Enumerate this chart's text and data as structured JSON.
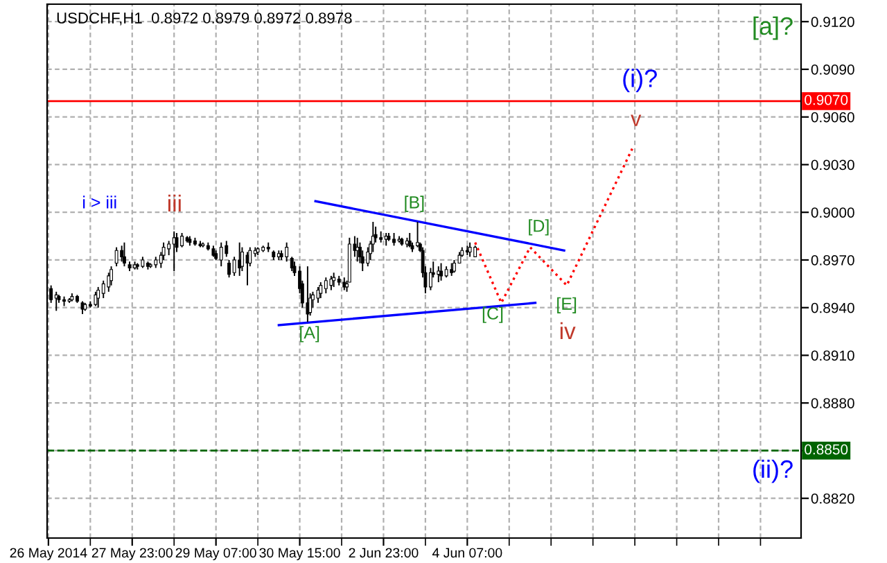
{
  "chart_data": {
    "type": "candlestick",
    "title": "USDCHF,H1  0.8972 0.8979 0.8972 0.8978",
    "categories": [
      "26 May 2014",
      null,
      null,
      null,
      null,
      null,
      null,
      null,
      null,
      null,
      null,
      null,
      null,
      null,
      null,
      null,
      null,
      null,
      null,
      null,
      null,
      null,
      null,
      null,
      null,
      null,
      null,
      null,
      null,
      null,
      null,
      null,
      "27 May 23:00",
      null,
      null,
      null,
      null,
      null,
      null,
      null,
      null,
      null,
      null,
      null,
      null,
      null,
      null,
      null,
      null,
      null,
      null,
      null,
      null,
      null,
      null,
      null,
      null,
      null,
      null,
      null,
      null,
      null,
      null,
      null,
      "29 May 07:00",
      null,
      null,
      null,
      null,
      null,
      null,
      null,
      null,
      null,
      null,
      null,
      null,
      null,
      null,
      null,
      null,
      null,
      null,
      null,
      null,
      null,
      null,
      null,
      null,
      null,
      null,
      null,
      null,
      null,
      null,
      null,
      "30 May 15:00",
      null,
      null,
      null,
      null,
      null,
      null,
      null,
      null,
      null,
      null,
      null,
      null,
      null,
      null,
      null,
      null,
      null,
      null,
      null,
      null,
      null,
      null,
      null,
      null,
      null,
      null,
      null,
      null,
      null,
      null,
      null,
      "2 Jun 23:00",
      null,
      null,
      null,
      null,
      null,
      null,
      null,
      null,
      null,
      null,
      null,
      null,
      null,
      null,
      null,
      null,
      null,
      null,
      null,
      null,
      null,
      null,
      null,
      null,
      null,
      null,
      null,
      null,
      null,
      null,
      null,
      "4 Jun 07:00",
      null,
      null,
      null,
      null,
      null,
      null,
      null,
      null,
      null,
      null,
      null,
      null,
      null,
      null,
      null,
      null,
      null,
      null,
      null,
      null,
      null,
      null,
      null,
      null,
      null,
      null,
      null,
      null,
      null,
      null,
      null,
      null,
      null,
      null,
      null,
      null,
      null,
      null,
      null,
      null,
      null,
      null,
      null,
      null,
      null,
      null,
      null,
      null,
      null,
      null,
      null,
      null,
      null,
      null,
      null,
      null,
      null,
      null,
      null,
      null,
      null,
      null,
      null,
      null,
      null,
      null,
      null,
      null,
      null,
      null,
      null,
      null,
      null,
      null,
      null,
      null,
      null,
      null,
      null,
      null,
      null,
      null,
      null,
      null,
      null,
      null,
      null,
      null,
      null,
      null,
      null,
      null,
      null,
      null,
      null,
      null,
      null,
      null,
      null,
      null,
      null,
      null,
      null,
      null,
      null,
      null,
      null,
      null,
      null,
      null,
      null,
      null,
      null,
      null,
      null,
      null,
      null,
      null,
      null,
      null,
      null,
      null,
      null,
      null,
      null,
      null,
      null
    ],
    "color": "#000000",
    "ohlc": [
      null,
      [
        0.8952,
        0.8954,
        0.8943,
        0.8945
      ],
      null,
      [
        0.8946,
        0.895,
        0.8938,
        0.8948
      ],
      [
        0.8947,
        0.8948,
        0.8943,
        0.8945
      ],
      null,
      [
        0.8945,
        0.8947,
        0.8941,
        0.8944
      ],
      null,
      [
        0.8944,
        0.8946,
        0.8943,
        0.8945
      ],
      [
        0.8945,
        0.8949,
        0.8944,
        0.8947
      ],
      null,
      [
        0.8947,
        0.8948,
        0.8943,
        0.8944
      ],
      null,
      [
        0.8943,
        0.8944,
        0.8936,
        0.8939
      ],
      [
        0.8939,
        0.8943,
        0.8938,
        0.8942
      ],
      null,
      [
        0.8942,
        0.8944,
        0.894,
        0.8941
      ],
      null,
      [
        0.8942,
        0.895,
        0.8941,
        0.8948
      ],
      [
        0.8946,
        0.8953,
        0.894,
        0.8951
      ],
      null,
      [
        0.8949,
        0.8957,
        0.8946,
        0.8955
      ],
      null,
      [
        0.8953,
        0.8962,
        0.895,
        0.896
      ],
      [
        0.8957,
        0.8966,
        0.8954,
        0.8964
      ],
      null,
      [
        0.8968,
        0.8978,
        0.8966,
        0.8976
      ],
      null,
      [
        0.8976,
        0.8979,
        0.8969,
        0.8972
      ],
      [
        0.8972,
        0.8981,
        0.8966,
        0.8968
      ],
      null,
      [
        0.8967,
        0.8969,
        0.8963,
        0.8965
      ],
      null,
      [
        0.8965,
        0.8969,
        0.8964,
        0.8967
      ],
      [
        0.8967,
        0.8968,
        0.8964,
        0.8966
      ],
      null,
      [
        0.8966,
        0.8972,
        0.8965,
        0.897
      ],
      null,
      [
        0.8968,
        0.8969,
        0.8964,
        0.8966
      ],
      [
        0.8966,
        0.8968,
        0.8965,
        0.8967
      ],
      null,
      [
        0.8967,
        0.8972,
        0.8965,
        0.897
      ],
      null,
      [
        0.8968,
        0.8975,
        0.8965,
        0.8973
      ],
      [
        0.8973,
        0.8981,
        0.897,
        0.8978
      ],
      null,
      [
        0.8977,
        0.8982,
        0.8973,
        0.898
      ],
      null,
      [
        0.898,
        0.8988,
        0.8963,
        0.8984
      ],
      [
        0.8984,
        0.8987,
        0.8975,
        0.8978
      ],
      null,
      [
        0.8979,
        0.8987,
        0.8978,
        0.8985
      ],
      null,
      [
        0.8984,
        0.8985,
        0.8981,
        0.8982
      ],
      [
        0.8983,
        0.8985,
        0.8979,
        0.8981
      ],
      null,
      [
        0.8982,
        0.8984,
        0.8979,
        0.898
      ],
      null,
      [
        0.898,
        0.8982,
        0.8978,
        0.8979
      ],
      [
        0.8979,
        0.8981,
        0.8978,
        0.898
      ],
      null,
      [
        0.8979,
        0.8981,
        0.8976,
        0.8977
      ],
      null,
      [
        0.8977,
        0.8979,
        0.8972,
        0.8973
      ],
      [
        0.8974,
        0.8976,
        0.897,
        0.8971
      ],
      null,
      [
        0.897,
        0.8981,
        0.8966,
        0.8978
      ],
      null,
      [
        0.8979,
        0.8982,
        0.8972,
        0.8974
      ],
      [
        0.8968,
        0.897,
        0.8959,
        0.8961
      ],
      null,
      [
        0.8962,
        0.8972,
        0.896,
        0.897
      ],
      null,
      [
        0.897,
        0.8981,
        0.896,
        0.8965
      ],
      [
        0.8966,
        0.8978,
        0.8963,
        0.8975
      ],
      null,
      [
        0.8973,
        0.8975,
        0.8954,
        0.8968
      ],
      [
        0.8968,
        0.8978,
        0.8966,
        0.8976
      ],
      null,
      [
        0.8974,
        0.8978,
        0.8972,
        0.8976
      ],
      [
        0.8975,
        0.8978,
        0.8973,
        0.8977
      ],
      null,
      [
        0.8976,
        0.8979,
        0.8975,
        0.8978
      ],
      null,
      [
        0.8978,
        0.8981,
        0.8975,
        0.8977
      ],
      null,
      [
        0.8975,
        0.8976,
        0.897,
        0.8972
      ],
      null,
      [
        0.8972,
        0.8976,
        0.897,
        0.8974
      ],
      [
        0.8974,
        0.8976,
        0.897,
        0.8972
      ],
      null,
      [
        0.8972,
        0.8981,
        0.8969,
        0.8978
      ],
      null,
      [
        0.8971,
        0.8972,
        0.8963,
        0.8965
      ],
      [
        0.8966,
        0.8969,
        0.896,
        0.8962
      ],
      null,
      [
        0.8963,
        0.8966,
        0.8949,
        0.8952
      ],
      [
        0.8955,
        0.8957,
        0.894,
        0.8943
      ],
      null,
      [
        0.8943,
        0.8966,
        0.8931,
        0.8936
      ],
      [
        0.8937,
        0.8949,
        0.8935,
        0.8946
      ],
      [
        0.8945,
        0.895,
        0.894,
        0.8948
      ],
      null,
      [
        0.8946,
        0.8953,
        0.8943,
        0.8951
      ],
      [
        0.8949,
        0.8956,
        0.8946,
        0.8954
      ],
      null,
      [
        0.8952,
        0.8959,
        0.8949,
        0.8957
      ],
      null,
      [
        0.8954,
        0.896,
        0.8951,
        0.8958
      ],
      [
        0.8957,
        0.8962,
        0.8953,
        0.8959
      ],
      null,
      [
        0.8958,
        0.896,
        0.8954,
        0.8956
      ],
      null,
      [
        0.8956,
        0.8959,
        0.8951,
        0.8953
      ],
      [
        0.8953,
        0.8957,
        0.895,
        0.8955
      ],
      [
        0.8956,
        0.8984,
        0.8956,
        0.898
      ],
      null,
      [
        0.898,
        0.8985,
        0.8972,
        0.8976
      ],
      [
        0.8976,
        0.8984,
        0.8969,
        0.8978
      ],
      [
        0.8978,
        0.8981,
        0.8968,
        0.8972
      ],
      [
        0.8972,
        0.8976,
        0.8963,
        0.8968
      ],
      null,
      [
        0.8968,
        0.8978,
        0.8966,
        0.8975
      ],
      [
        0.8974,
        0.8982,
        0.897,
        0.898
      ],
      [
        0.898,
        0.8994,
        0.8975,
        0.8985
      ],
      [
        0.8986,
        0.8991,
        0.8981,
        0.8984
      ],
      null,
      [
        0.8984,
        0.8988,
        0.8981,
        0.8983
      ],
      null,
      [
        0.8983,
        0.8987,
        0.8979,
        0.8985
      ],
      [
        0.8985,
        0.8987,
        0.8982,
        0.8983
      ],
      null,
      [
        0.8983,
        0.8987,
        0.8979,
        0.8981
      ],
      null,
      [
        0.8982,
        0.8985,
        0.8981,
        0.8983
      ],
      [
        0.8983,
        0.8984,
        0.8979,
        0.898
      ],
      null,
      [
        0.898,
        0.8984,
        0.8978,
        0.8982
      ],
      [
        0.8982,
        0.8987,
        0.8978,
        0.8979
      ],
      [
        0.8979,
        0.8981,
        0.8975,
        0.8977
      ],
      null,
      [
        0.8979,
        0.8994,
        0.8978,
        0.8981
      ],
      [
        0.898,
        0.8981,
        0.8975,
        0.8976
      ],
      [
        0.8976,
        0.8978,
        0.8959,
        0.8962
      ],
      [
        0.8962,
        0.8966,
        0.8949,
        0.8953
      ],
      null,
      [
        0.8953,
        0.8965,
        0.8951,
        0.8962
      ],
      [
        0.8962,
        0.8969,
        0.8959,
        0.8961
      ],
      null,
      [
        0.8961,
        0.8966,
        0.8956,
        0.8963
      ],
      [
        0.8963,
        0.8968,
        0.8957,
        0.896
      ],
      null,
      [
        0.896,
        0.8966,
        0.8959,
        0.8964
      ],
      null,
      [
        0.8964,
        0.8968,
        0.896,
        0.8962
      ],
      [
        0.8963,
        0.897,
        0.8962,
        0.8968
      ],
      null,
      [
        0.8968,
        0.8975,
        0.8968,
        0.8973
      ],
      [
        0.8973,
        0.8978,
        0.8972,
        0.8976
      ],
      null,
      [
        0.8976,
        0.8979,
        0.8973,
        0.8975
      ],
      [
        0.8975,
        0.8981,
        0.8972,
        0.8978
      ],
      null,
      [
        0.8972,
        0.8979,
        0.8972,
        0.8978
      ],
      null,
      null,
      null,
      null,
      null,
      null,
      null,
      null,
      null,
      null,
      null,
      null,
      null,
      null,
      null,
      null,
      null,
      null,
      null,
      null,
      null,
      null,
      null,
      null,
      null,
      null,
      null,
      null,
      null,
      null,
      null,
      null,
      null,
      null,
      null,
      null,
      null,
      null,
      null,
      null,
      null,
      null,
      null,
      null,
      null,
      null,
      null,
      null,
      null,
      null,
      null,
      null,
      null,
      null,
      null,
      null,
      null,
      null,
      null,
      null,
      null,
      null,
      null,
      null,
      null,
      null,
      null,
      null,
      null,
      null,
      null,
      null,
      null,
      null,
      null,
      null,
      null,
      null,
      null,
      null,
      null,
      null,
      null,
      null,
      null,
      null,
      null,
      null,
      null,
      null,
      null,
      null,
      null,
      null,
      null,
      null,
      null,
      null,
      null,
      null,
      null,
      null,
      null,
      null,
      null,
      null,
      null,
      null,
      null,
      null,
      null,
      null,
      null,
      null,
      null,
      null,
      null,
      null,
      null,
      null,
      null,
      null,
      null,
      null
    ],
    "series": [
      {
        "type": "line",
        "color": "#0000ff",
        "line_style": "solid",
        "values": [
          null,
          null,
          null,
          null,
          null,
          null,
          null,
          null,
          null,
          null,
          null,
          null,
          null,
          null,
          null,
          null,
          null,
          null,
          null,
          null,
          null,
          null,
          null,
          null,
          null,
          null,
          null,
          null,
          null,
          null,
          null,
          null,
          null,
          null,
          null,
          null,
          null,
          null,
          null,
          null,
          null,
          null,
          null,
          null,
          null,
          null,
          null,
          null,
          null,
          null,
          null,
          null,
          null,
          null,
          null,
          null,
          null,
          null,
          null,
          null,
          null,
          null,
          null,
          null,
          null,
          null,
          null,
          null,
          null,
          null,
          null,
          null,
          null,
          null,
          null,
          null,
          null,
          null,
          null,
          null,
          null,
          null,
          null,
          null,
          null,
          null,
          null,
          null,
          null,
          null,
          null,
          null,
          null,
          null,
          null,
          null,
          null,
          null,
          null,
          null,
          null,
          null,
          0.9007,
          null,
          null,
          null,
          null,
          null,
          null,
          null,
          null,
          null,
          null,
          null,
          null,
          null,
          null,
          null,
          null,
          null,
          null,
          null,
          null,
          null,
          null,
          null,
          null,
          null,
          null,
          null,
          null,
          null,
          null,
          null,
          null,
          null,
          null,
          null,
          null,
          null,
          null,
          null,
          null,
          null,
          null,
          null,
          null,
          null,
          null,
          null,
          null,
          null,
          null,
          null,
          null,
          null,
          null,
          null,
          null,
          null,
          null,
          null,
          null,
          null,
          null,
          null,
          null,
          null,
          null,
          null,
          null,
          null,
          null,
          null,
          null,
          null,
          null,
          null,
          null,
          null,
          null,
          null,
          null,
          null,
          null,
          null,
          null,
          null,
          null,
          null,
          null,
          null,
          null,
          null,
          null,
          null,
          null,
          0.8976,
          null,
          null,
          null,
          null,
          null,
          null,
          null,
          null,
          null,
          null,
          null,
          null,
          null,
          null,
          null,
          null,
          null,
          null,
          null,
          null,
          null,
          null,
          null,
          null,
          null,
          null,
          null,
          null,
          null,
          null,
          null,
          null,
          null,
          null,
          null,
          null,
          null,
          null,
          null,
          null,
          null,
          null,
          null,
          null,
          null,
          null,
          null,
          null,
          null,
          null,
          null,
          null,
          null,
          null,
          null,
          null,
          null,
          null,
          null,
          null,
          null,
          null,
          null,
          null,
          null,
          null,
          null,
          null,
          null,
          null,
          null,
          null,
          null,
          null,
          null,
          null,
          null,
          null,
          null,
          null,
          null,
          null,
          null,
          null,
          null,
          null,
          null,
          null,
          null,
          null
        ]
      },
      {
        "type": "line",
        "color": "#0000ff",
        "line_style": "solid",
        "values": [
          null,
          null,
          null,
          null,
          null,
          null,
          null,
          null,
          null,
          null,
          null,
          null,
          null,
          null,
          null,
          null,
          null,
          null,
          null,
          null,
          null,
          null,
          null,
          null,
          null,
          null,
          null,
          null,
          null,
          null,
          null,
          null,
          null,
          null,
          null,
          null,
          null,
          null,
          null,
          null,
          null,
          null,
          null,
          null,
          null,
          null,
          null,
          null,
          null,
          null,
          null,
          null,
          null,
          null,
          null,
          null,
          null,
          null,
          null,
          null,
          null,
          null,
          null,
          null,
          null,
          null,
          null,
          null,
          null,
          null,
          null,
          null,
          null,
          null,
          null,
          null,
          null,
          null,
          null,
          null,
          null,
          null,
          null,
          null,
          null,
          null,
          null,
          null,
          0.8929,
          null,
          null,
          null,
          null,
          null,
          null,
          null,
          null,
          null,
          null,
          null,
          null,
          null,
          null,
          null,
          null,
          null,
          null,
          null,
          null,
          null,
          null,
          null,
          null,
          null,
          null,
          null,
          null,
          null,
          null,
          null,
          null,
          null,
          null,
          null,
          null,
          null,
          null,
          null,
          null,
          null,
          null,
          null,
          null,
          null,
          null,
          null,
          null,
          null,
          null,
          null,
          null,
          null,
          null,
          null,
          null,
          null,
          null,
          null,
          null,
          null,
          null,
          null,
          null,
          null,
          null,
          null,
          null,
          null,
          null,
          null,
          null,
          null,
          null,
          null,
          null,
          null,
          null,
          null,
          null,
          null,
          null,
          null,
          null,
          null,
          null,
          null,
          null,
          null,
          null,
          null,
          null,
          null,
          null,
          null,
          null,
          null,
          0.8943,
          null,
          null,
          null,
          null,
          null,
          null,
          null,
          null,
          null,
          null,
          null,
          null,
          null,
          null,
          null,
          null,
          null,
          null,
          null,
          null,
          null,
          null,
          null,
          null,
          null,
          null,
          null,
          null,
          null,
          null,
          null,
          null,
          null,
          null,
          null,
          null,
          null,
          null,
          null,
          null,
          null,
          null,
          null,
          null,
          null,
          null,
          null,
          null,
          null,
          null,
          null,
          null,
          null,
          null,
          null,
          null,
          null,
          null,
          null,
          null,
          null,
          null,
          null,
          null,
          null,
          null,
          null,
          null,
          null,
          null,
          null,
          null,
          null,
          null,
          null,
          null,
          null,
          null,
          null,
          null,
          null,
          null,
          null,
          null,
          null,
          null,
          null,
          null,
          null,
          null,
          null,
          null,
          null,
          null,
          null,
          null,
          null,
          null,
          null,
          null,
          null
        ]
      },
      {
        "type": "line",
        "color": "#ff0000",
        "line_style": "dotted",
        "values": [
          null,
          null,
          null,
          null,
          null,
          null,
          null,
          null,
          null,
          null,
          null,
          null,
          null,
          null,
          null,
          null,
          null,
          null,
          null,
          null,
          null,
          null,
          null,
          null,
          null,
          null,
          null,
          null,
          null,
          null,
          null,
          null,
          null,
          null,
          null,
          null,
          null,
          null,
          null,
          null,
          null,
          null,
          null,
          null,
          null,
          null,
          null,
          null,
          null,
          null,
          null,
          null,
          null,
          null,
          null,
          null,
          null,
          null,
          null,
          null,
          null,
          null,
          null,
          null,
          null,
          null,
          null,
          null,
          null,
          null,
          null,
          null,
          null,
          null,
          null,
          null,
          null,
          null,
          null,
          null,
          null,
          null,
          null,
          null,
          null,
          null,
          null,
          null,
          null,
          null,
          null,
          null,
          null,
          null,
          null,
          null,
          null,
          null,
          null,
          null,
          null,
          null,
          null,
          null,
          null,
          null,
          null,
          null,
          null,
          null,
          null,
          null,
          null,
          null,
          null,
          null,
          null,
          null,
          null,
          null,
          null,
          null,
          null,
          null,
          null,
          null,
          null,
          null,
          null,
          null,
          null,
          null,
          null,
          null,
          null,
          null,
          null,
          null,
          null,
          null,
          null,
          null,
          null,
          null,
          null,
          null,
          null,
          null,
          null,
          null,
          null,
          null,
          null,
          null,
          null,
          null,
          null,
          null,
          null,
          null,
          null,
          null,
          null,
          0.8981,
          null,
          null,
          null,
          null,
          null,
          null,
          null,
          null,
          null,
          0.8943,
          null,
          null,
          null,
          null,
          null,
          null,
          null,
          null,
          null,
          null,
          0.8978,
          null,
          null,
          null,
          null,
          null,
          null,
          null,
          null,
          null,
          null,
          null,
          null,
          null,
          0.8954,
          null,
          null,
          null,
          null,
          null,
          null,
          null,
          null,
          null,
          null,
          null,
          null,
          null,
          null,
          null,
          null,
          null,
          null,
          null,
          null,
          null,
          null,
          null,
          null,
          0.904,
          null,
          null,
          null,
          null,
          null,
          null,
          null,
          null,
          null,
          null,
          null,
          null,
          null,
          null,
          null,
          null,
          null,
          null,
          null,
          null,
          null,
          null,
          null,
          null,
          null,
          null,
          null,
          null,
          null,
          null,
          null,
          null,
          null,
          null,
          null,
          null,
          null,
          null,
          null,
          null,
          null,
          null,
          null,
          null,
          null,
          null,
          null,
          null,
          null,
          null,
          null,
          null,
          null,
          null,
          null,
          null,
          null,
          null,
          null,
          null,
          null,
          null,
          null,
          null
        ]
      }
    ],
    "ref_lines": [
      {
        "axis": "y",
        "value": 0.907,
        "label": "0.9070",
        "color": "#ff0000",
        "line_style": "solid"
      },
      {
        "axis": "y",
        "value": 0.885,
        "label": "0.8850",
        "color": "#006400",
        "line_style": "dashed"
      }
    ],
    "annotations": [
      "i > iii",
      "iii",
      "[A]",
      "[B]",
      "[C]",
      "[D]",
      "[E]",
      "iv",
      "v",
      "(i)?",
      "[a]?",
      "(ii)?"
    ],
    "ylim": [
      0.8795,
      0.9131
    ],
    "yticks": [
      {
        "value": 0.882,
        "label": "0.8820"
      },
      {
        "value": 0.885,
        "label": null
      },
      {
        "value": 0.888,
        "label": "0.8880"
      },
      {
        "value": 0.891,
        "label": "0.8910"
      },
      {
        "value": 0.894,
        "label": "0.8940"
      },
      {
        "value": 0.897,
        "label": "0.8970"
      },
      {
        "value": 0.9,
        "label": "0.9000"
      },
      {
        "value": 0.903,
        "label": "0.9030"
      },
      {
        "value": 0.906,
        "label": "0.9060"
      },
      {
        "value": 0.909,
        "label": "0.9090"
      },
      {
        "value": 0.912,
        "label": "0.9120"
      }
    ],
    "grid": true
  }
}
